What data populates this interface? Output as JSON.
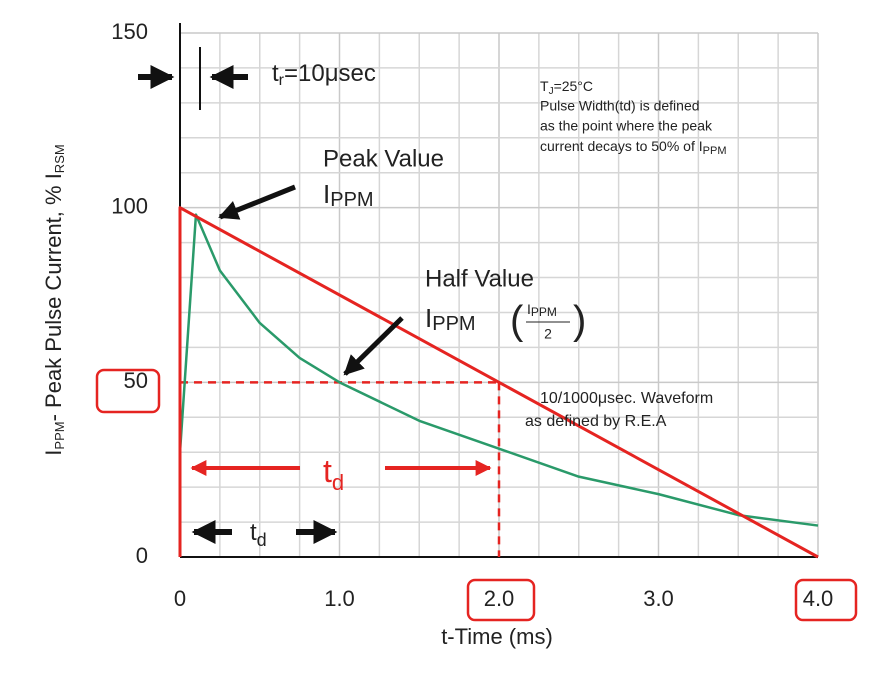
{
  "chart_data": {
    "type": "line",
    "x_label": "t-Time (ms)",
    "y_label": [
      "I",
      "PPM",
      "- Peak Pulse Current, % I",
      "RSM"
    ],
    "xlim": [
      0,
      4
    ],
    "ylim": [
      0,
      150
    ],
    "xticks": [
      0,
      {
        "value": 1,
        "label": "1.0"
      },
      {
        "value": 2,
        "label": "2.0"
      },
      {
        "value": 3,
        "label": "3.0"
      },
      {
        "value": 4,
        "label": "4.0"
      }
    ],
    "yticks": [
      0,
      50,
      100,
      150
    ],
    "grid": true,
    "series": [
      {
        "color": "#e52421",
        "x": [
          0,
          0,
          4
        ],
        "values": [
          0,
          100,
          0
        ]
      },
      {
        "color": "#2a9a6a",
        "x": [
          0,
          0.1,
          0.25,
          0.5,
          0.75,
          1.0,
          1.5,
          2.0,
          2.5,
          3.0,
          3.5,
          4.0
        ],
        "values": [
          30,
          98,
          82,
          67,
          57,
          50,
          39,
          31,
          23,
          18,
          12,
          9
        ]
      }
    ],
    "half_value": {
      "x": 2,
      "y": 50,
      "color": "#e52421"
    },
    "annotations": {
      "rise_time": [
        "t",
        "r",
        "=10μsec"
      ],
      "conditions": [
        [
          "T",
          "J",
          "=25°C"
        ],
        [
          "Pulse Width(td) is defined"
        ],
        [
          "as the point where the peak"
        ],
        [
          "current decays to 50% of I",
          "PPM"
        ]
      ],
      "peak": [
        "Peak Value",
        "I",
        "PPM"
      ],
      "half": [
        "Half Value",
        "I",
        "PPM",
        "I",
        "PPM",
        "2"
      ],
      "waveform": [
        "10/1000μsec. Waveform",
        "as defined by R.E.A"
      ],
      "td_red": [
        "t",
        "d"
      ],
      "td_black": [
        "t",
        "d"
      ]
    }
  }
}
